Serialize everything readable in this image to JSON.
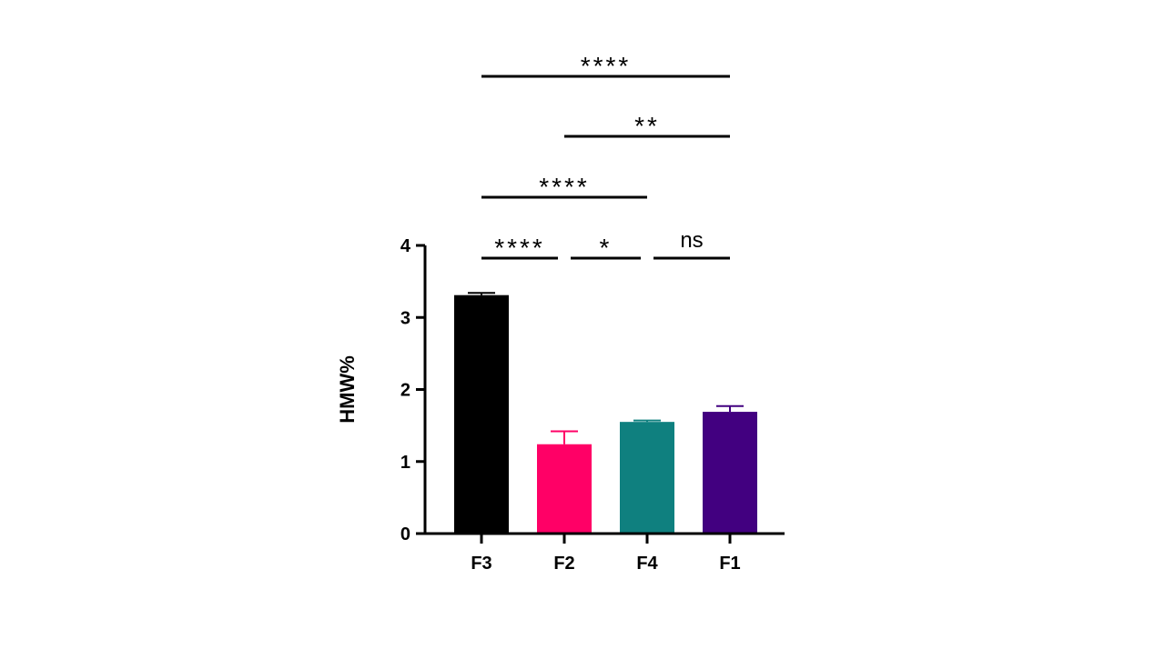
{
  "chart_data": {
    "type": "bar",
    "ylabel": "HMW%",
    "xlabel": "",
    "ylim": [
      0,
      4
    ],
    "yticks": [
      0,
      1,
      2,
      3,
      4
    ],
    "categories": [
      "F3",
      "F2",
      "F4",
      "F1"
    ],
    "values": [
      3.31,
      1.24,
      1.55,
      1.69
    ],
    "errors": [
      0.03,
      0.18,
      0.02,
      0.08
    ],
    "colors": [
      "#000000",
      "#ff0066",
      "#0f807f",
      "#420080"
    ],
    "grid": false,
    "comparisons": [
      {
        "from": "F3",
        "to": "F2",
        "label": "****"
      },
      {
        "from": "F2",
        "to": "F4",
        "label": "*"
      },
      {
        "from": "F4",
        "to": "F1",
        "label": "ns"
      },
      {
        "from": "F3",
        "to": "F4",
        "label": "****"
      },
      {
        "from": "F2",
        "to": "F1",
        "label": "**"
      },
      {
        "from": "F3",
        "to": "F1",
        "label": "****"
      }
    ]
  }
}
